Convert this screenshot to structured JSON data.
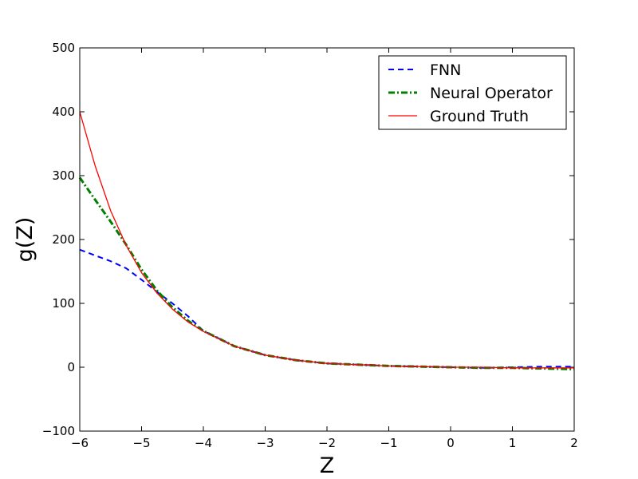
{
  "chart_data": {
    "type": "line",
    "title": "",
    "xlabel": "Z",
    "ylabel": "g(Z)",
    "xlim": [
      -6,
      2
    ],
    "ylim": [
      -100,
      500
    ],
    "xticks": [
      -6,
      -5,
      -4,
      -3,
      -2,
      -1,
      0,
      1,
      2
    ],
    "yticks": [
      -100,
      0,
      100,
      200,
      300,
      400,
      500
    ],
    "xtick_labels": [
      "−6",
      "−5",
      "−4",
      "−3",
      "−2",
      "−1",
      "0",
      "1",
      "2"
    ],
    "ytick_labels": [
      "−100",
      "0",
      "100",
      "200",
      "300",
      "400",
      "500"
    ],
    "grid": false,
    "legend_position": "top-right",
    "series": [
      {
        "name": "FNN",
        "color": "#0000ff",
        "style": "dashed",
        "x": [
          -6,
          -5.75,
          -5.5,
          -5.25,
          -5,
          -4.75,
          -4.5,
          -4.25,
          -4,
          -3.5,
          -3,
          -2.5,
          -2,
          -1.5,
          -1,
          -0.5,
          0,
          0.5,
          1,
          1.5,
          2
        ],
        "y": [
          184,
          175,
          166,
          155,
          137,
          118,
          100,
          80,
          57,
          33,
          19,
          11,
          6,
          4,
          2,
          1,
          0,
          -1,
          0,
          1,
          1
        ]
      },
      {
        "name": "Neural Operator",
        "color": "#008000",
        "style": "dashdot",
        "x": [
          -6,
          -5.75,
          -5.5,
          -5.25,
          -5,
          -4.75,
          -4.5,
          -4.25,
          -4,
          -3.5,
          -3,
          -2.5,
          -2,
          -1.5,
          -1,
          -0.5,
          0,
          0.5,
          1,
          1.5,
          2
        ],
        "y": [
          297,
          262,
          228,
          192,
          153,
          120,
          94,
          73,
          57,
          33,
          19,
          11,
          6,
          4,
          2,
          1,
          0,
          -1,
          -1,
          -2,
          -3
        ]
      },
      {
        "name": "Ground Truth",
        "color": "#ff0000",
        "style": "solid",
        "x": [
          -6,
          -5.75,
          -5.5,
          -5.25,
          -5,
          -4.75,
          -4.5,
          -4.25,
          -4,
          -3.5,
          -3,
          -2.5,
          -2,
          -1.5,
          -1,
          -0.5,
          0,
          0.5,
          1,
          1.5,
          2
        ],
        "y": [
          400,
          315,
          245,
          191,
          148,
          116,
          91,
          71,
          56,
          33,
          19,
          11,
          6,
          4,
          2,
          1,
          0,
          0,
          -1,
          -1,
          -1
        ]
      }
    ]
  }
}
